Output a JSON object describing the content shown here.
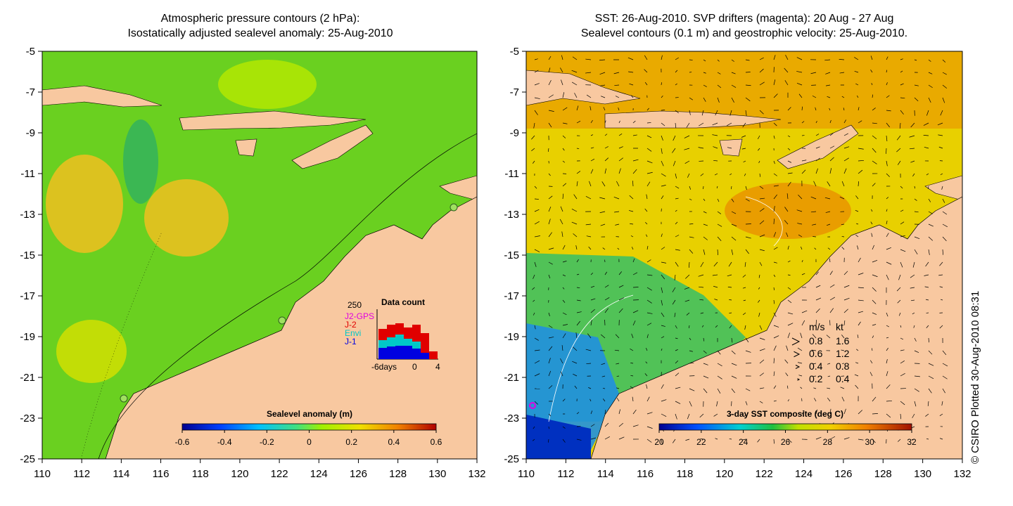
{
  "left_panel": {
    "title_line1": "Atmospheric pressure contours (2 hPa):",
    "title_line2": "Isostatically adjusted sealevel anomaly: 25-Aug-2010",
    "colorbar": {
      "label": "Sealevel anomaly (m)",
      "ticks": [
        "-0.6",
        "-0.4",
        "-0.2",
        "0",
        "0.2",
        "0.4",
        "0.6"
      ]
    },
    "data_count": {
      "title": "Data count",
      "max_label": "250",
      "xtick_labels": [
        "-6days",
        "0",
        "4"
      ],
      "legend": [
        {
          "label": "J2-GPS",
          "color": "#e000e0"
        },
        {
          "label": "J-2",
          "color": "#e00000"
        },
        {
          "label": "Envi",
          "color": "#00c8c8"
        },
        {
          "label": "J-1",
          "color": "#0000e0"
        }
      ]
    }
  },
  "right_panel": {
    "title_line1": "SST: 26-Aug-2010. SVP drifters (magenta): 20 Aug - 27 Aug",
    "title_line2": "Sealevel contours (0.1 m) and geostrophic velocity: 25-Aug-2010.",
    "colorbar": {
      "label": "3-day SST composite (deg C)",
      "ticks": [
        "20",
        "22",
        "24",
        "26",
        "28",
        "30",
        "32"
      ]
    },
    "velocity_legend": {
      "header_ms": "m/s",
      "header_kt": "kt",
      "rows": [
        {
          "ms": "0.8",
          "kt": "1.6"
        },
        {
          "ms": "0.6",
          "kt": "1.2"
        },
        {
          "ms": "0.4",
          "kt": "0.8"
        },
        {
          "ms": "0.2",
          "kt": "0.4"
        }
      ]
    }
  },
  "axes": {
    "lon_ticks": [
      "110",
      "112",
      "114",
      "116",
      "118",
      "120",
      "122",
      "124",
      "126",
      "128",
      "130",
      "132"
    ],
    "lat_ticks": [
      "-5",
      "-7",
      "-9",
      "-11",
      "-13",
      "-15",
      "-17",
      "-19",
      "-21",
      "-23",
      "-25"
    ]
  },
  "credit": "© CSIRO Plotted 30-Aug-2010 08:31",
  "colors": {
    "land": "#f8c8a0",
    "ocean_left": "#6ad020",
    "ocean_right": "#e8d000"
  }
}
